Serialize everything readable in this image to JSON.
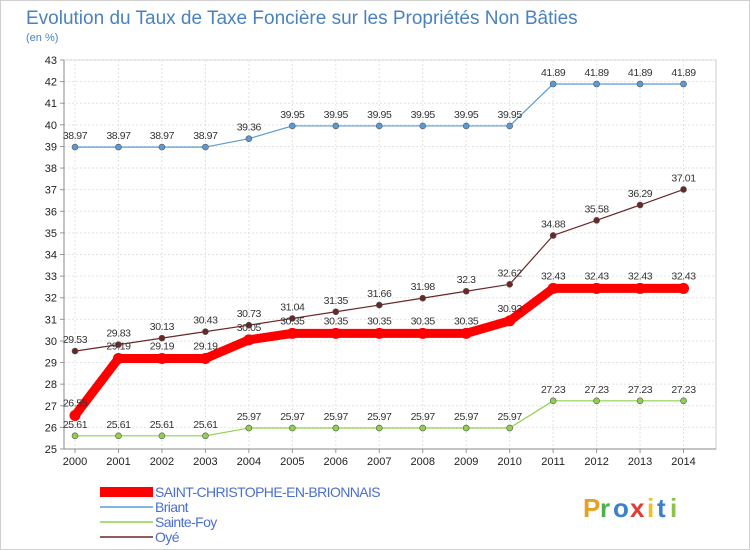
{
  "chart_data": {
    "type": "line",
    "title": "Evolution du Taux de Taxe Foncière sur les Propriétés Non Bâties",
    "subtitle": "(en %)",
    "xlabel": "",
    "ylabel": "(en %)",
    "categories": [
      "2000",
      "2001",
      "2002",
      "2003",
      "2004",
      "2005",
      "2006",
      "2007",
      "2008",
      "2009",
      "2010",
      "2011",
      "2012",
      "2013",
      "2014"
    ],
    "ylim": [
      25,
      43
    ],
    "yticks": [
      "25",
      "26",
      "27",
      "28",
      "29",
      "30",
      "31",
      "32",
      "33",
      "34",
      "35",
      "36",
      "37",
      "38",
      "39",
      "40",
      "41",
      "42",
      "43"
    ],
    "grid": true,
    "legend_position": "bottom-left",
    "series": [
      {
        "name": "SAINT-CHRISTOPHE-EN-BRIONNAIS",
        "color": "#ff0000",
        "values": [
          26.55,
          29.19,
          29.19,
          29.19,
          30.05,
          30.35,
          30.35,
          30.35,
          30.35,
          30.35,
          30.93,
          32.43,
          32.43,
          32.43,
          32.43
        ],
        "labels": [
          "26.55",
          "29.19",
          "29.19",
          "29.19",
          "30.05",
          "30.35",
          "30.35",
          "30.35",
          "30.35",
          "30.35",
          "30.93",
          "32.43",
          "32.43",
          "32.43",
          "32.43"
        ]
      },
      {
        "name": "Briant",
        "color": "#5b9bd5",
        "values": [
          38.97,
          38.97,
          38.97,
          38.97,
          39.36,
          39.95,
          39.95,
          39.95,
          39.95,
          39.95,
          39.95,
          41.89,
          41.89,
          41.89,
          41.89
        ],
        "labels": [
          "38.97",
          "38.97",
          "38.97",
          "38.97",
          "39.36",
          "39.95",
          "39.95",
          "39.95",
          "39.95",
          "39.95",
          "39.95",
          "41.89",
          "41.89",
          "41.89",
          "41.89"
        ]
      },
      {
        "name": "Sainte-Foy",
        "color": "#8fd14f",
        "values": [
          25.61,
          25.61,
          25.61,
          25.61,
          25.97,
          25.97,
          25.97,
          25.97,
          25.97,
          25.97,
          25.97,
          27.23,
          27.23,
          27.23,
          27.23
        ],
        "labels": [
          "25.61",
          "25.61",
          "25.61",
          "25.61",
          "25.97",
          "25.97",
          "25.97",
          "25.97",
          "25.97",
          "25.97",
          "25.97",
          "27.23",
          "27.23",
          "27.23",
          "27.23"
        ]
      },
      {
        "name": "Oyé",
        "color": "#6b2727",
        "values": [
          29.53,
          29.83,
          30.13,
          30.43,
          30.73,
          31.04,
          31.35,
          31.66,
          31.98,
          32.3,
          32.62,
          34.88,
          35.58,
          36.29,
          37.01
        ],
        "labels": [
          "29.53",
          "29.83",
          "30.13",
          "30.43",
          "30.73",
          "31.04",
          "31.35",
          "31.66",
          "31.98",
          "32.3",
          "32.62",
          "34.88",
          "35.58",
          "36.29",
          "37.01"
        ]
      }
    ]
  },
  "logo": {
    "letters": [
      "P",
      "r",
      "o",
      "x",
      "i",
      "t",
      "i"
    ],
    "colors": [
      "#e8a020",
      "#4caf50",
      "#3a7fd0",
      "#e53935",
      "#f0c020",
      "#3a7fd0",
      "#8bc34a"
    ]
  }
}
